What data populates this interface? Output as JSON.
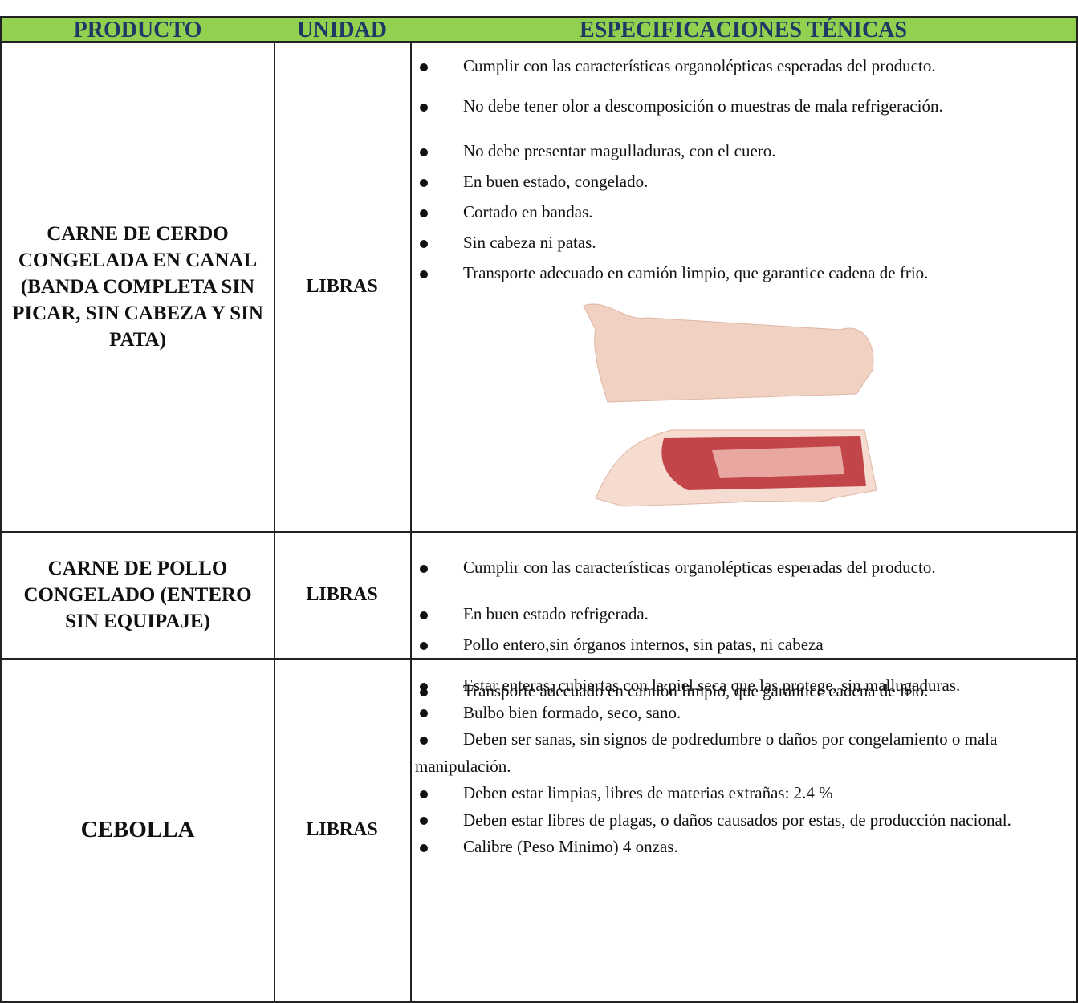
{
  "table": {
    "header": [
      "PRODUCTO",
      "UNIDAD",
      "ESPECIFICACIONES TÉNICAS"
    ],
    "rows": [
      {
        "product": "CARNE DE CERDO CONGELADA EN CANAL (BANDA COMPLETA SIN PICAR, SIN CABEZA Y SIN PATA)",
        "unit": "LIBRAS",
        "specs": [
          "Cumplir con las características organolépticas esperadas del producto.",
          "No debe tener olor a descomposición o muestras de mala refrigeración.",
          "No debe presentar magulladuras, con el cuero.",
          "En buen estado, congelado.",
          "Cortado en bandas.",
          "Sin cabeza ni patas.",
          "Transporte adecuado en camión limpio, que garantice cadena de frio."
        ]
      },
      {
        "product": "CARNE DE POLLO CONGELADO (ENTERO SIN EQUIPAJE)",
        "unit": "LIBRAS",
        "specs": [
          "Cumplir con las características organolépticas esperadas del producto.",
          "En buen estado refrigerada.",
          "Pollo entero,sin órganos internos, sin patas, ni cabeza",
          "Transporte adecuado en camión limpio, que garantice cadena de frio."
        ]
      },
      {
        "product": "CEBOLLA",
        "unit": "LIBRAS",
        "specs": [
          "Estar enteras, cubiertas con la piel seca que las protege, sin mallugaduras.",
          "Bulbo bien formado, seco, sano.",
          "Deben ser sanas, sin signos de podredumbre o daños por congelamiento o mala manipulación.",
          "Deben estar limpias, libres de materias extrañas: 2.4 %",
          "Deben estar libres de plagas, o daños causados por estas, de producción nacional.",
          "Calibre (Peso Minimo) 4 onzas."
        ]
      }
    ]
  }
}
